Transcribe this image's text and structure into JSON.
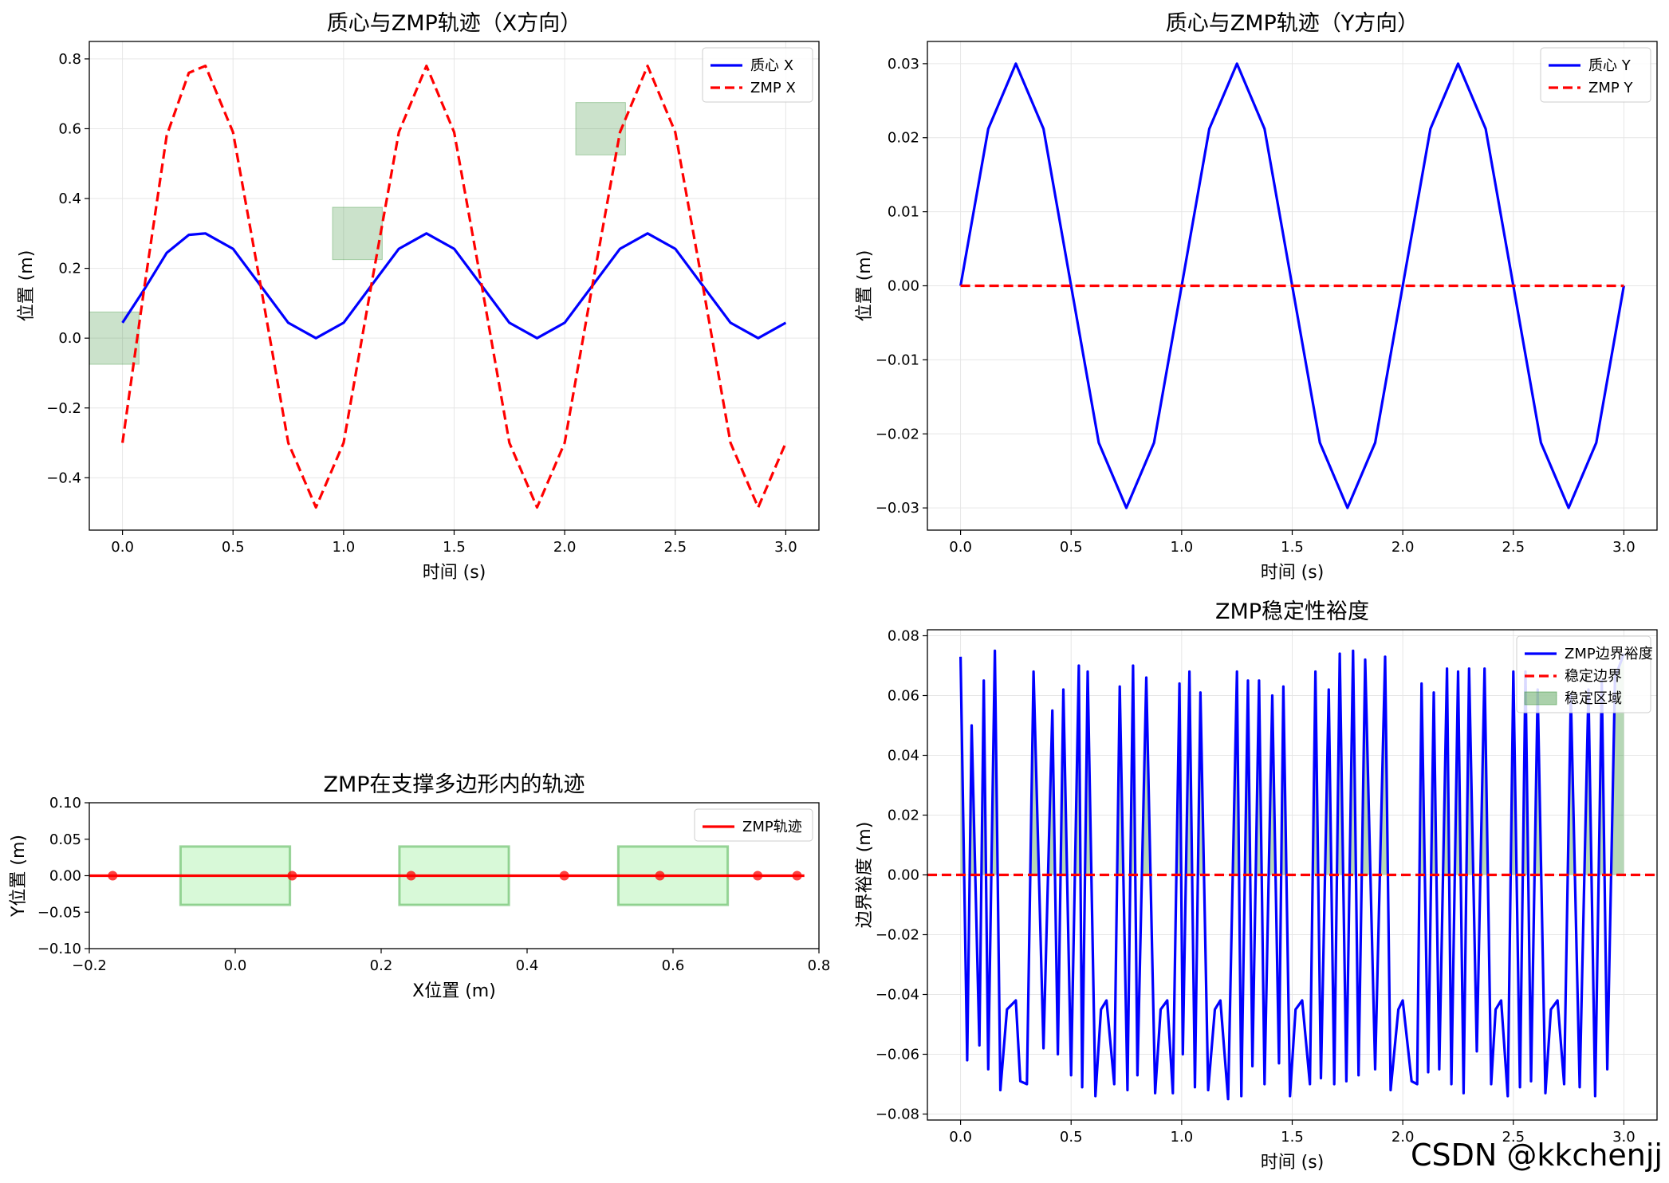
{
  "watermark": "CSDN @kkchenjj",
  "colors": {
    "com": "#0000ff",
    "zmp": "#ff0000",
    "region": "#2e8b2e",
    "region_fill": "#90ee90",
    "grid": "#e6e6e6"
  },
  "chart_data": [
    {
      "id": "x",
      "type": "line",
      "title": "质心与ZMP轨迹（X方向）",
      "xlabel": "时间 (s)",
      "ylabel": "位置 (m)",
      "xlim": [
        -0.15,
        3.15
      ],
      "ylim": [
        -0.55,
        0.85
      ],
      "xticks": [
        0.0,
        0.5,
        1.0,
        1.5,
        2.0,
        2.5,
        3.0
      ],
      "xticklabels": [
        "0.0",
        "0.5",
        "1.0",
        "1.5",
        "2.0",
        "2.5",
        "3.0"
      ],
      "yticks": [
        -0.4,
        -0.2,
        0.0,
        0.2,
        0.4,
        0.6,
        0.8
      ],
      "yticklabels": [
        "−0.4",
        "−0.2",
        "0.0",
        "0.2",
        "0.4",
        "0.6",
        "0.8"
      ],
      "grid": true,
      "legend": "top-right",
      "series": [
        {
          "name": "质心 X",
          "style": "solid",
          "color": "#0000ff",
          "x": [
            0.0,
            0.1,
            0.2,
            0.3,
            0.375,
            0.5,
            0.625,
            0.75,
            0.875,
            1.0,
            1.125,
            1.25,
            1.375,
            1.5,
            1.625,
            1.75,
            1.875,
            2.0,
            2.125,
            2.25,
            2.375,
            2.5,
            2.625,
            2.75,
            2.875,
            3.0
          ],
          "y": [
            0.044,
            0.141,
            0.244,
            0.296,
            0.3,
            0.256,
            0.15,
            0.044,
            0.0,
            0.044,
            0.15,
            0.256,
            0.3,
            0.256,
            0.15,
            0.044,
            0.0,
            0.044,
            0.15,
            0.256,
            0.3,
            0.256,
            0.15,
            0.044,
            0.0,
            0.044
          ]
        },
        {
          "name": "ZMP X",
          "style": "dashed",
          "color": "#ff0000",
          "x": [
            0.0,
            0.1,
            0.2,
            0.3,
            0.375,
            0.5,
            0.625,
            0.75,
            0.875,
            1.0,
            1.125,
            1.25,
            1.375,
            1.5,
            1.625,
            1.75,
            1.875,
            2.0,
            2.125,
            2.25,
            2.375,
            2.5,
            2.625,
            2.75,
            2.875,
            3.0
          ],
          "y": [
            -0.3,
            0.15,
            0.58,
            0.76,
            0.78,
            0.59,
            0.15,
            -0.3,
            -0.485,
            -0.3,
            0.15,
            0.59,
            0.78,
            0.59,
            0.15,
            -0.3,
            -0.485,
            -0.3,
            0.15,
            0.59,
            0.78,
            0.59,
            0.15,
            -0.3,
            -0.485,
            -0.3
          ]
        }
      ],
      "regions": [
        {
          "x": [
            -0.15,
            0.075
          ],
          "y": [
            -0.075,
            0.075
          ]
        },
        {
          "x": [
            0.95,
            1.175
          ],
          "y": [
            0.225,
            0.375
          ]
        },
        {
          "x": [
            2.05,
            2.275
          ],
          "y": [
            0.525,
            0.675
          ]
        }
      ]
    },
    {
      "id": "y",
      "type": "line",
      "title": "质心与ZMP轨迹（Y方向）",
      "xlabel": "时间 (s)",
      "ylabel": "位置 (m)",
      "xlim": [
        -0.15,
        3.15
      ],
      "ylim": [
        -0.033,
        0.033
      ],
      "xticks": [
        0.0,
        0.5,
        1.0,
        1.5,
        2.0,
        2.5,
        3.0
      ],
      "xticklabels": [
        "0.0",
        "0.5",
        "1.0",
        "1.5",
        "2.0",
        "2.5",
        "3.0"
      ],
      "yticks": [
        -0.03,
        -0.02,
        -0.01,
        0.0,
        0.01,
        0.02,
        0.03
      ],
      "yticklabels": [
        "−0.03",
        "−0.02",
        "−0.01",
        "0.00",
        "0.01",
        "0.02",
        "0.03"
      ],
      "grid": true,
      "legend": "top-right",
      "series": [
        {
          "name": "质心 Y",
          "style": "solid",
          "color": "#0000ff",
          "x": [
            0.0,
            0.125,
            0.25,
            0.375,
            0.5,
            0.625,
            0.75,
            0.875,
            1.0,
            1.125,
            1.25,
            1.375,
            1.5,
            1.625,
            1.75,
            1.875,
            2.0,
            2.125,
            2.25,
            2.375,
            2.5,
            2.625,
            2.75,
            2.875,
            3.0
          ],
          "y": [
            0.0,
            0.0212,
            0.03,
            0.0212,
            0.0,
            -0.0212,
            -0.03,
            -0.0212,
            0.0,
            0.0212,
            0.03,
            0.0212,
            0.0,
            -0.0212,
            -0.03,
            -0.0212,
            0.0,
            0.0212,
            0.03,
            0.0212,
            0.0,
            -0.0212,
            -0.03,
            -0.0212,
            0.0
          ]
        },
        {
          "name": "ZMP Y",
          "style": "dashed",
          "color": "#ff0000",
          "x": [
            0.0,
            3.0
          ],
          "y": [
            0.0,
            0.0
          ]
        }
      ]
    },
    {
      "id": "poly",
      "type": "line",
      "title": "ZMP在支撑多边形内的轨迹",
      "xlabel": "X位置 (m)",
      "ylabel": "Y位置 (m)",
      "xlim": [
        -0.2,
        0.8
      ],
      "ylim": [
        -0.1,
        0.1
      ],
      "xticks": [
        -0.2,
        0.0,
        0.2,
        0.4,
        0.6,
        0.8
      ],
      "xticklabels": [
        "−0.2",
        "0.0",
        "0.2",
        "0.4",
        "0.6",
        "0.8"
      ],
      "yticks": [
        -0.1,
        -0.05,
        0.0,
        0.05,
        0.1
      ],
      "yticklabels": [
        "−0.10",
        "−0.05",
        "0.00",
        "0.05",
        "0.10"
      ],
      "grid": false,
      "legend": "top-right",
      "series": [
        {
          "name": "ZMP轨迹",
          "style": "solid",
          "color": "#ff0000",
          "x": [
            -0.2,
            0.78
          ],
          "y": [
            0.0,
            0.0
          ]
        }
      ],
      "points": {
        "x": [
          -0.168,
          0.078,
          0.241,
          0.451,
          0.582,
          0.716,
          0.77
        ],
        "y": [
          0.0,
          0.0,
          0.0,
          0.0,
          0.0,
          0.0,
          0.0
        ]
      },
      "regions": [
        {
          "x": [
            -0.075,
            0.075
          ],
          "y": [
            -0.04,
            0.04
          ]
        },
        {
          "x": [
            0.225,
            0.375
          ],
          "y": [
            -0.04,
            0.04
          ]
        },
        {
          "x": [
            0.525,
            0.675
          ],
          "y": [
            -0.04,
            0.04
          ]
        }
      ]
    },
    {
      "id": "margin",
      "type": "line",
      "title": "ZMP稳定性裕度",
      "xlabel": "时间 (s)",
      "ylabel": "边界裕度 (m)",
      "xlim": [
        -0.15,
        3.15
      ],
      "ylim": [
        -0.082,
        0.082
      ],
      "xticks": [
        0.0,
        0.5,
        1.0,
        1.5,
        2.0,
        2.5,
        3.0
      ],
      "xticklabels": [
        "0.0",
        "0.5",
        "1.0",
        "1.5",
        "2.0",
        "2.5",
        "3.0"
      ],
      "yticks": [
        -0.08,
        -0.06,
        -0.04,
        -0.02,
        0.0,
        0.02,
        0.04,
        0.06,
        0.08
      ],
      "yticklabels": [
        "−0.08",
        "−0.06",
        "−0.04",
        "−0.02",
        "0.00",
        "0.02",
        "0.04",
        "0.06",
        "0.08"
      ],
      "grid": true,
      "legend": "top-right",
      "series": [
        {
          "name": "ZMP边界裕度",
          "style": "solid",
          "color": "#0000ff",
          "x": [
            0.0,
            0.03,
            0.05,
            0.085,
            0.105,
            0.125,
            0.155,
            0.18,
            0.21,
            0.25,
            0.27,
            0.3,
            0.33,
            0.375,
            0.415,
            0.44,
            0.465,
            0.5,
            0.535,
            0.55,
            0.575,
            0.61,
            0.635,
            0.66,
            0.695,
            0.72,
            0.755,
            0.78,
            0.8,
            0.84,
            0.88,
            0.905,
            0.935,
            0.96,
            0.99,
            1.005,
            1.035,
            1.06,
            1.085,
            1.12,
            1.15,
            1.175,
            1.21,
            1.25,
            1.27,
            1.3,
            1.32,
            1.35,
            1.375,
            1.41,
            1.44,
            1.46,
            1.49,
            1.515,
            1.545,
            1.58,
            1.605,
            1.63,
            1.665,
            1.69,
            1.715,
            1.745,
            1.775,
            1.8,
            1.83,
            1.875,
            1.92,
            1.945,
            1.98,
            2.0,
            2.04,
            2.065,
            2.085,
            2.115,
            2.14,
            2.165,
            2.2,
            2.22,
            2.25,
            2.275,
            2.3,
            2.335,
            2.37,
            2.4,
            2.42,
            2.445,
            2.475,
            2.5,
            2.53,
            2.555,
            2.58,
            2.61,
            2.645,
            2.67,
            2.7,
            2.73,
            2.76,
            2.8,
            2.84,
            2.87,
            2.9,
            2.925,
            2.96,
            3.0
          ],
          "y": [
            0.073,
            -0.062,
            0.05,
            -0.057,
            0.065,
            -0.065,
            0.075,
            -0.072,
            -0.045,
            -0.042,
            -0.069,
            -0.07,
            0.068,
            -0.058,
            0.055,
            -0.06,
            0.062,
            -0.067,
            0.07,
            -0.071,
            0.068,
            -0.074,
            -0.045,
            -0.042,
            -0.07,
            0.063,
            -0.072,
            0.07,
            -0.067,
            0.066,
            -0.073,
            -0.045,
            -0.042,
            -0.073,
            0.064,
            -0.06,
            0.068,
            -0.071,
            0.061,
            -0.072,
            -0.045,
            -0.042,
            -0.075,
            0.068,
            -0.074,
            0.065,
            -0.064,
            0.065,
            -0.07,
            0.06,
            -0.063,
            0.063,
            -0.074,
            -0.045,
            -0.042,
            -0.07,
            0.068,
            -0.068,
            0.062,
            -0.07,
            0.074,
            -0.069,
            0.075,
            -0.067,
            0.072,
            -0.065,
            0.073,
            -0.072,
            -0.045,
            -0.042,
            -0.069,
            -0.07,
            0.064,
            -0.066,
            0.061,
            -0.065,
            0.069,
            -0.07,
            0.068,
            -0.073,
            0.069,
            -0.059,
            0.069,
            -0.07,
            -0.045,
            -0.042,
            -0.074,
            0.068,
            -0.071,
            0.068,
            -0.069,
            0.062,
            -0.073,
            -0.045,
            -0.042,
            -0.07,
            0.06,
            -0.071,
            0.062,
            -0.074,
            0.065,
            -0.065,
            0.066,
            0.074
          ]
        },
        {
          "name": "稳定边界",
          "style": "dashed",
          "color": "#ff0000",
          "x": [
            -0.15,
            3.15
          ],
          "y": [
            0.0,
            0.0
          ]
        },
        {
          "name": "稳定区域",
          "style": "fill",
          "color": "#2e8b2e"
        }
      ]
    }
  ]
}
